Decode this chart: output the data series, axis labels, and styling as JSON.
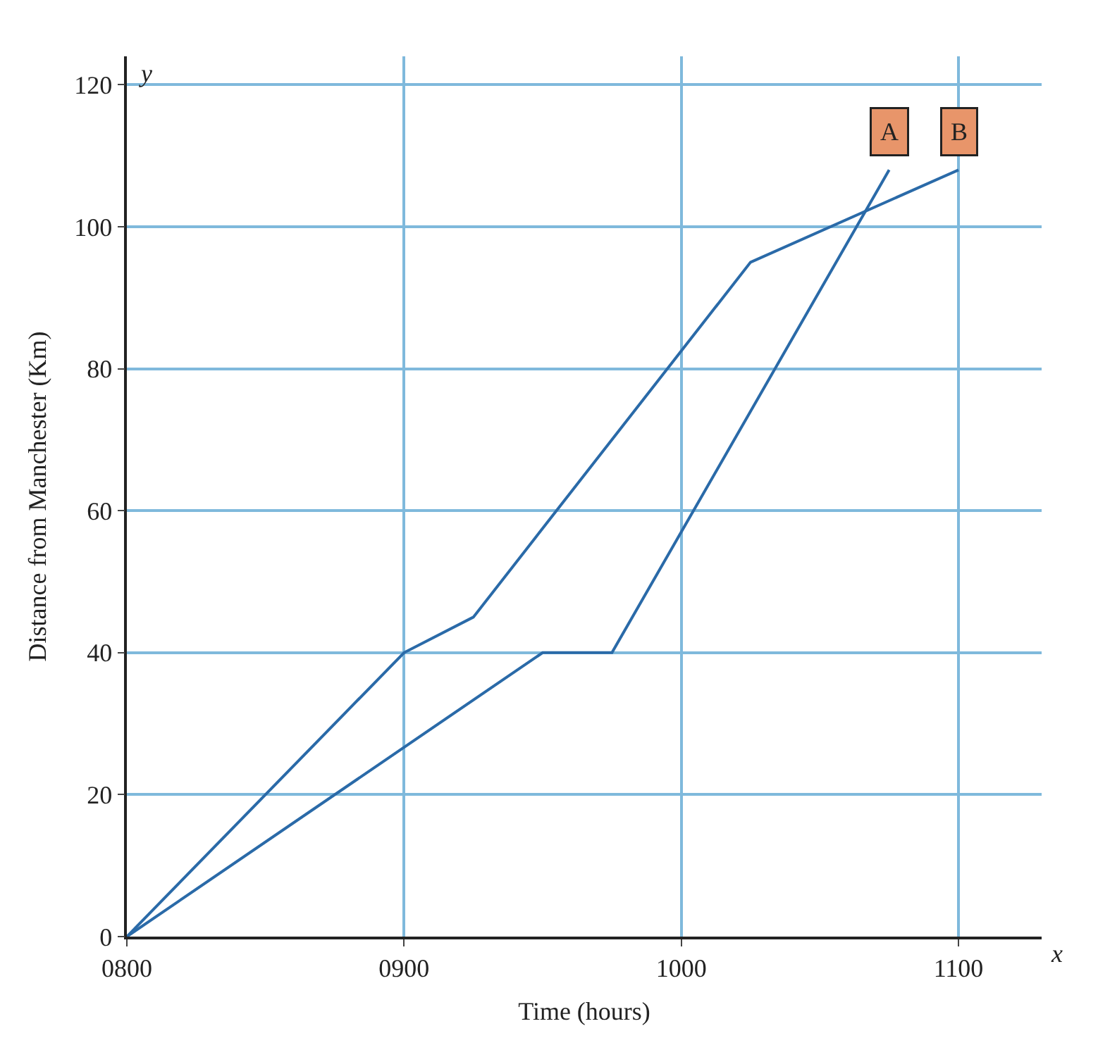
{
  "chart_data": {
    "type": "line",
    "xlabel": "Time (hours)",
    "ylabel": "Distance from Manchester (Km)",
    "annotations": [
      "x",
      "y"
    ],
    "series": [
      {
        "name": "A",
        "color": "#2a6aa8",
        "x": [
          800,
          950,
          975,
          1075
        ],
        "values": [
          0,
          40,
          40,
          108
        ]
      },
      {
        "name": "B",
        "color": "#2a6aa8",
        "x": [
          800,
          900,
          925,
          1025,
          1100
        ],
        "values": [
          0,
          40,
          45,
          95,
          108
        ]
      }
    ],
    "xlim": [
      800,
      1130
    ],
    "ylim": [
      0,
      124
    ],
    "xticks": [
      {
        "value": 800,
        "label": "0800"
      },
      {
        "value": 900,
        "label": "0900"
      },
      {
        "value": 1000,
        "label": "1000"
      },
      {
        "value": 1100,
        "label": "1100"
      }
    ],
    "yticks": [
      0,
      20,
      40,
      60,
      80,
      100,
      120
    ],
    "grid": true,
    "legend": false,
    "marker": "none",
    "line_style": "solid"
  }
}
